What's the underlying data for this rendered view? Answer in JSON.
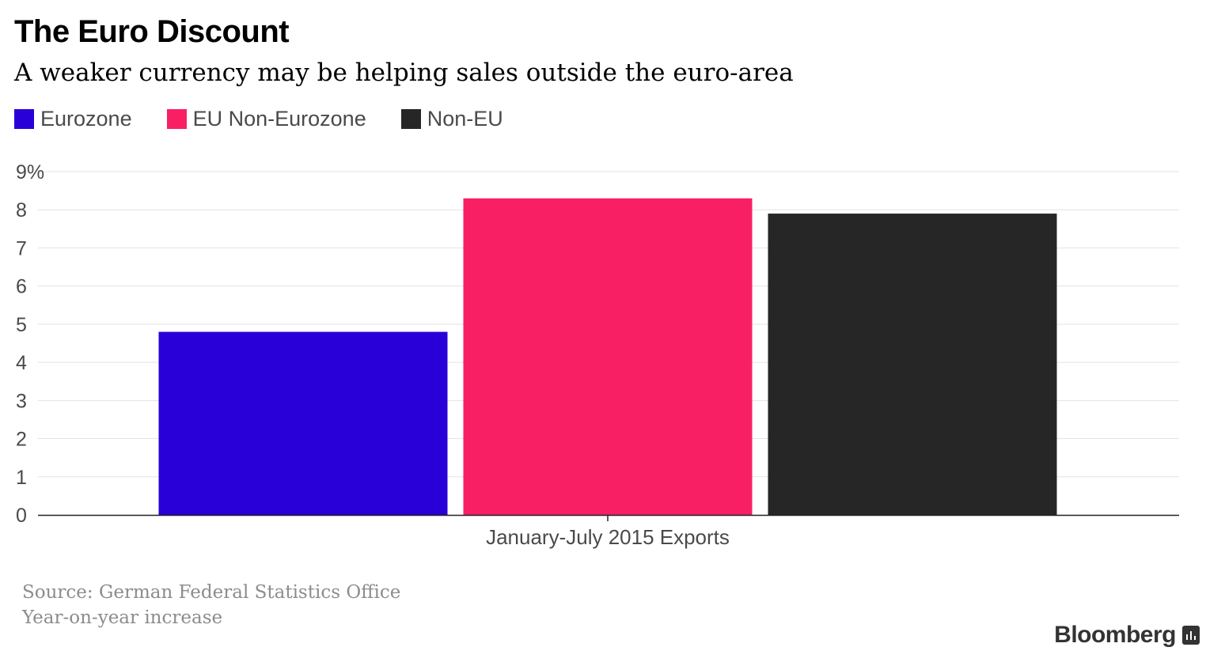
{
  "title": "The Euro Discount",
  "subtitle": "A weaker currency may be helping sales outside the euro-area",
  "legend": [
    {
      "label": "Eurozone",
      "color": "#2a00d8"
    },
    {
      "label": "EU Non-Eurozone",
      "color": "#f91f64"
    },
    {
      "label": "Non-EU",
      "color": "#262626"
    }
  ],
  "footer": {
    "source": "Source: German Federal Statistics Office",
    "note": "Year-on-year increase",
    "brand": "Bloomberg"
  },
  "chart_data": {
    "type": "bar",
    "categories": [
      "January-July 2015 Exports"
    ],
    "series": [
      {
        "name": "Eurozone",
        "values": [
          4.8
        ],
        "color": "#2a00d8"
      },
      {
        "name": "EU Non-Eurozone",
        "values": [
          8.3
        ],
        "color": "#f91f64"
      },
      {
        "name": "Non-EU",
        "values": [
          7.9
        ],
        "color": "#262626"
      }
    ],
    "yticks": [
      "0",
      "1",
      "2",
      "3",
      "4",
      "5",
      "6",
      "7",
      "8",
      "9%"
    ],
    "ylim": [
      0,
      9
    ],
    "grid": true,
    "legend_position": "top-left"
  }
}
